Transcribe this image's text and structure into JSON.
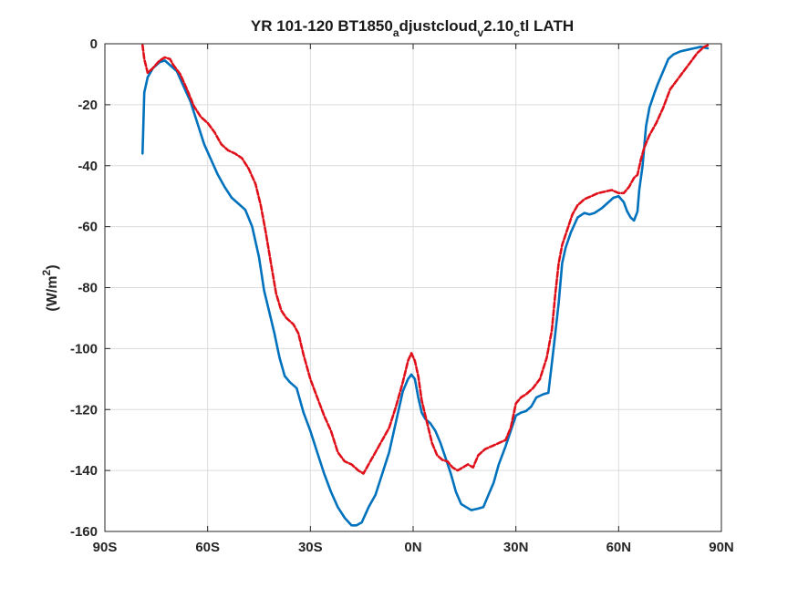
{
  "chart_data": {
    "type": "line",
    "title": {
      "prefix": "YR 101-120 BT1850",
      "sub1": "a",
      "mid1": "djustcloud",
      "sub2": "v",
      "mid2": "2.10",
      "sub3": "c",
      "suffix": "tl LATH"
    },
    "ylabel": {
      "prefix": "(W/m",
      "sup": "2",
      "suffix": ")"
    },
    "xlim": [
      -90,
      90
    ],
    "ylim": [
      -160,
      0
    ],
    "grid": true,
    "xticks": [
      {
        "value": -90,
        "label": "90S"
      },
      {
        "value": -60,
        "label": "60S"
      },
      {
        "value": -30,
        "label": "30S"
      },
      {
        "value": 0,
        "label": "0N"
      },
      {
        "value": 30,
        "label": "30N"
      },
      {
        "value": 60,
        "label": "60N"
      },
      {
        "value": 90,
        "label": "90N"
      }
    ],
    "yticks": [
      {
        "value": 0,
        "label": "0"
      },
      {
        "value": -20,
        "label": "-20"
      },
      {
        "value": -40,
        "label": "-40"
      },
      {
        "value": -60,
        "label": "-60"
      },
      {
        "value": -80,
        "label": "-80"
      },
      {
        "value": -100,
        "label": "-100"
      },
      {
        "value": -120,
        "label": "-120"
      },
      {
        "value": -140,
        "label": "-140"
      },
      {
        "value": -160,
        "label": "-160"
      }
    ],
    "series": [
      {
        "color": "#0072bd",
        "style": "solid",
        "points": [
          [
            -79,
            -36
          ],
          [
            -78.5,
            -16
          ],
          [
            -77.5,
            -11
          ],
          [
            -76,
            -8
          ],
          [
            -74,
            -6
          ],
          [
            -72.5,
            -5.5
          ],
          [
            -71,
            -7
          ],
          [
            -69,
            -9
          ],
          [
            -67,
            -14
          ],
          [
            -65,
            -19
          ],
          [
            -63,
            -26
          ],
          [
            -61,
            -33
          ],
          [
            -59,
            -38
          ],
          [
            -57,
            -43
          ],
          [
            -55,
            -47
          ],
          [
            -53,
            -50.5
          ],
          [
            -51,
            -52.5
          ],
          [
            -49,
            -54.5
          ],
          [
            -47,
            -60
          ],
          [
            -45,
            -70
          ],
          [
            -43.5,
            -81
          ],
          [
            -42,
            -88
          ],
          [
            -40.5,
            -95
          ],
          [
            -39,
            -103
          ],
          [
            -37.5,
            -109
          ],
          [
            -36,
            -111
          ],
          [
            -34,
            -113
          ],
          [
            -32,
            -121
          ],
          [
            -30,
            -127
          ],
          [
            -28,
            -134
          ],
          [
            -26,
            -141
          ],
          [
            -24,
            -147
          ],
          [
            -22,
            -152
          ],
          [
            -20,
            -155.5
          ],
          [
            -18,
            -158
          ],
          [
            -16.5,
            -158
          ],
          [
            -15,
            -157
          ],
          [
            -13,
            -152
          ],
          [
            -11,
            -148
          ],
          [
            -9,
            -141
          ],
          [
            -7,
            -134
          ],
          [
            -5,
            -124
          ],
          [
            -3,
            -114
          ],
          [
            -1.5,
            -110
          ],
          [
            -0.5,
            -108.5
          ],
          [
            0.5,
            -110
          ],
          [
            1.5,
            -116
          ],
          [
            2.5,
            -121
          ],
          [
            3.5,
            -123
          ],
          [
            5,
            -124.5
          ],
          [
            6.5,
            -127
          ],
          [
            8,
            -131
          ],
          [
            9.5,
            -136
          ],
          [
            11,
            -141
          ],
          [
            12.5,
            -147
          ],
          [
            14,
            -151
          ],
          [
            15.5,
            -152
          ],
          [
            17,
            -153
          ],
          [
            19,
            -152.5
          ],
          [
            20.5,
            -152
          ],
          [
            22,
            -148
          ],
          [
            23.5,
            -144
          ],
          [
            25,
            -138
          ],
          [
            27,
            -132
          ],
          [
            28.5,
            -127
          ],
          [
            30,
            -122
          ],
          [
            31.5,
            -121
          ],
          [
            33,
            -120.5
          ],
          [
            34.5,
            -119
          ],
          [
            36,
            -116
          ],
          [
            38,
            -115
          ],
          [
            39.5,
            -114.5
          ],
          [
            41,
            -100
          ],
          [
            42.5,
            -85
          ],
          [
            43.5,
            -72
          ],
          [
            44.5,
            -67
          ],
          [
            46,
            -62
          ],
          [
            48,
            -57
          ],
          [
            50,
            -55.5
          ],
          [
            51.5,
            -56
          ],
          [
            53,
            -55.5
          ],
          [
            55,
            -54
          ],
          [
            57,
            -52
          ],
          [
            58.5,
            -50.5
          ],
          [
            60,
            -50
          ],
          [
            61.5,
            -52
          ],
          [
            62.5,
            -55
          ],
          [
            63.5,
            -57
          ],
          [
            64.5,
            -58
          ],
          [
            65.5,
            -55
          ],
          [
            66,
            -48
          ],
          [
            67,
            -40
          ],
          [
            68,
            -27
          ],
          [
            69,
            -21
          ],
          [
            70.5,
            -16
          ],
          [
            71.5,
            -13
          ],
          [
            73,
            -9
          ],
          [
            74.5,
            -5
          ],
          [
            76,
            -3.5
          ],
          [
            78,
            -2.5
          ],
          [
            80,
            -2
          ],
          [
            82,
            -1.5
          ],
          [
            84,
            -1
          ],
          [
            86,
            -1.5
          ]
        ]
      },
      {
        "color": "#e0101a",
        "style": "dashed",
        "points": [
          [
            -79,
            -0.5
          ],
          [
            -78.5,
            -5
          ],
          [
            -77.5,
            -9.5
          ],
          [
            -76,
            -8
          ],
          [
            -74,
            -5.5
          ],
          [
            -72.5,
            -4.5
          ],
          [
            -71,
            -5
          ],
          [
            -70,
            -7
          ],
          [
            -68,
            -10
          ],
          [
            -66,
            -15
          ],
          [
            -64,
            -20.5
          ],
          [
            -62,
            -24
          ],
          [
            -60,
            -26
          ],
          [
            -58,
            -29
          ],
          [
            -56,
            -33
          ],
          [
            -54,
            -35
          ],
          [
            -52,
            -36
          ],
          [
            -50,
            -37.5
          ],
          [
            -48,
            -41
          ],
          [
            -46,
            -46
          ],
          [
            -44.5,
            -53
          ],
          [
            -43,
            -62
          ],
          [
            -41.5,
            -72
          ],
          [
            -40,
            -82
          ],
          [
            -38.5,
            -87.5
          ],
          [
            -37,
            -90
          ],
          [
            -35,
            -92
          ],
          [
            -33.5,
            -95
          ],
          [
            -32,
            -102
          ],
          [
            -30,
            -110
          ],
          [
            -28,
            -116
          ],
          [
            -26,
            -122
          ],
          [
            -24,
            -127
          ],
          [
            -22,
            -134
          ],
          [
            -20,
            -137
          ],
          [
            -18,
            -138
          ],
          [
            -16,
            -140
          ],
          [
            -14.5,
            -141
          ],
          [
            -13,
            -138
          ],
          [
            -11,
            -134
          ],
          [
            -9,
            -130
          ],
          [
            -7,
            -126
          ],
          [
            -5,
            -119
          ],
          [
            -3,
            -111
          ],
          [
            -1.5,
            -104
          ],
          [
            -0.5,
            -101.5
          ],
          [
            0.5,
            -104
          ],
          [
            1.5,
            -109
          ],
          [
            2.5,
            -117
          ],
          [
            4,
            -124
          ],
          [
            5.5,
            -131
          ],
          [
            7,
            -135
          ],
          [
            8.5,
            -136.5
          ],
          [
            10,
            -137
          ],
          [
            11.5,
            -139
          ],
          [
            13,
            -140
          ],
          [
            14.5,
            -139
          ],
          [
            16,
            -138
          ],
          [
            17.5,
            -139
          ],
          [
            19,
            -135
          ],
          [
            21,
            -133
          ],
          [
            23,
            -132
          ],
          [
            25,
            -131
          ],
          [
            27,
            -130
          ],
          [
            28.5,
            -126
          ],
          [
            30,
            -118
          ],
          [
            31.5,
            -116
          ],
          [
            33,
            -115
          ],
          [
            35,
            -113
          ],
          [
            37,
            -110
          ],
          [
            39,
            -103
          ],
          [
            40.5,
            -94
          ],
          [
            41.5,
            -82
          ],
          [
            42.5,
            -72
          ],
          [
            43.5,
            -66
          ],
          [
            45,
            -61
          ],
          [
            46.5,
            -56
          ],
          [
            48,
            -53
          ],
          [
            50,
            -51
          ],
          [
            52,
            -50
          ],
          [
            54,
            -49
          ],
          [
            56,
            -48.5
          ],
          [
            58,
            -48
          ],
          [
            60,
            -49
          ],
          [
            61.5,
            -49
          ],
          [
            63,
            -47
          ],
          [
            64.5,
            -44
          ],
          [
            65.5,
            -43
          ],
          [
            66.5,
            -38
          ],
          [
            67.5,
            -34
          ],
          [
            69,
            -30
          ],
          [
            71,
            -26
          ],
          [
            73,
            -21
          ],
          [
            75,
            -15
          ],
          [
            77,
            -12
          ],
          [
            79,
            -9
          ],
          [
            81,
            -6
          ],
          [
            83,
            -3
          ],
          [
            85,
            -1
          ],
          [
            86,
            -0.5
          ]
        ]
      }
    ]
  }
}
